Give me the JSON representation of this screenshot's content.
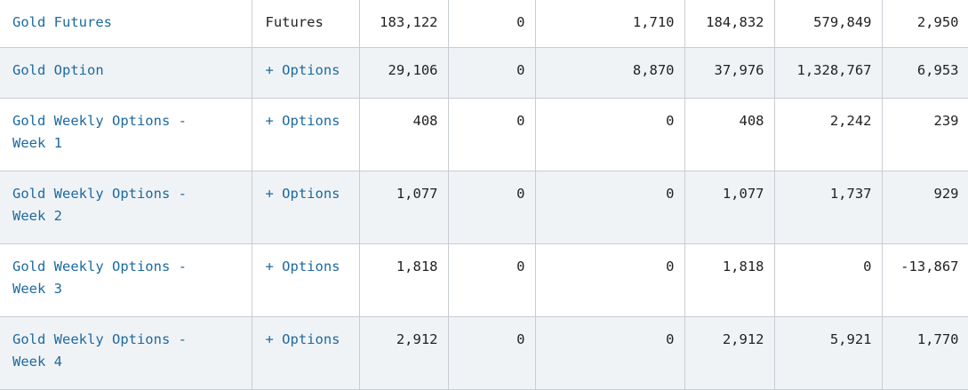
{
  "rows": [
    {
      "product": "Gold Futures",
      "type": "Futures",
      "type_link": false,
      "cells": [
        "183,122",
        "0",
        "1,710",
        "184,832",
        "579,849",
        "2,950"
      ]
    },
    {
      "product": "Gold Option",
      "type": "+ Options",
      "type_link": true,
      "cells": [
        "29,106",
        "0",
        "8,870",
        "37,976",
        "1,328,767",
        "6,953"
      ]
    },
    {
      "product": "Gold Weekly Options - Week 1",
      "type": "+ Options",
      "type_link": true,
      "cells": [
        "408",
        "0",
        "0",
        "408",
        "2,242",
        "239"
      ]
    },
    {
      "product": "Gold Weekly Options - Week 2",
      "type": "+ Options",
      "type_link": true,
      "cells": [
        "1,077",
        "0",
        "0",
        "1,077",
        "1,737",
        "929"
      ]
    },
    {
      "product": "Gold Weekly Options - Week 3",
      "type": "+ Options",
      "type_link": true,
      "cells": [
        "1,818",
        "0",
        "0",
        "1,818",
        "0",
        "-13,867"
      ]
    },
    {
      "product": "Gold Weekly Options - Week 4",
      "type": "+ Options",
      "type_link": true,
      "cells": [
        "2,912",
        "0",
        "0",
        "2,912",
        "5,921",
        "1,770"
      ]
    }
  ],
  "colors": {
    "link": "#1d6a9e",
    "text": "#222222",
    "row_alt_bg": "#f0f3f6",
    "border": "#c8cdd3"
  }
}
